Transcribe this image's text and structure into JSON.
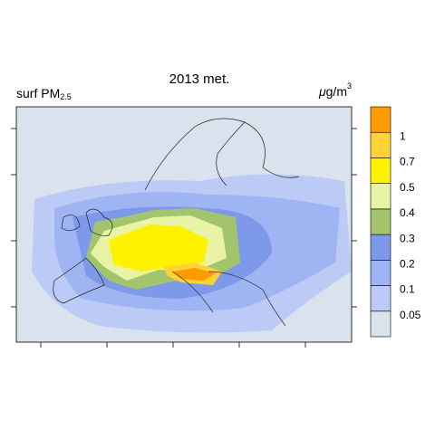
{
  "map": {
    "title": "2013 met.",
    "variable": {
      "text": "surf PM",
      "sub": "2.5"
    },
    "unit": {
      "mu": "μ",
      "text": "g/m",
      "sup": "3"
    }
  },
  "colorbar": {
    "levels": [
      0.05,
      0.1,
      0.2,
      0.3,
      0.4,
      0.5,
      0.7,
      1
    ],
    "colors": [
      "#dae2ee",
      "#bccbf6",
      "#9fb4f3",
      "#7f99ea",
      "#a2c46c",
      "#e9f3a6",
      "#fff200",
      "#ffd235",
      "#ff9b00"
    ]
  }
}
